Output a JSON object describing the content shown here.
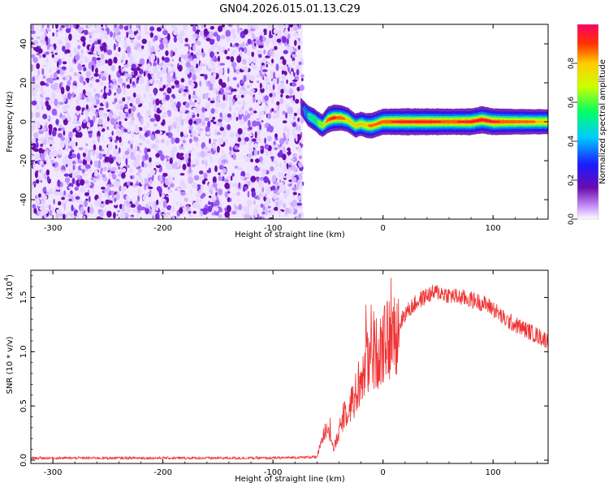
{
  "title": "GN04.2026.015.01.13.C29",
  "chart_data": [
    {
      "type": "heatmap",
      "title": "GN04.2026.015.01.13.C29",
      "xlabel": "Height of straight line (km)",
      "ylabel": "Frequency (Hz)",
      "xlim": [
        -320,
        150
      ],
      "ylim": [
        -50,
        50
      ],
      "xticks": [
        -300,
        -200,
        -100,
        0,
        100
      ],
      "yticks": [
        -40,
        -20,
        0,
        20,
        40
      ],
      "noise_region_x": [
        -320,
        -73
      ],
      "signal_track": {
        "x": [
          -75,
          -72,
          -68,
          -62,
          -58,
          -55,
          -50,
          -45,
          -38,
          -32,
          -25,
          -20,
          -15,
          -10,
          0,
          20,
          40,
          60,
          80,
          90,
          100,
          120,
          150
        ],
        "freq": [
          8,
          6,
          3,
          1,
          -1,
          -2,
          1,
          2,
          2,
          1,
          -2,
          -1,
          -2,
          -2,
          0,
          0,
          0,
          0,
          0,
          1,
          0,
          0,
          0
        ],
        "amplitude": [
          0.15,
          0.3,
          0.45,
          0.55,
          0.6,
          0.65,
          0.9,
          0.95,
          0.85,
          0.8,
          0.7,
          0.75,
          0.8,
          0.85,
          0.9,
          0.95,
          0.95,
          0.9,
          0.95,
          1.0,
          0.95,
          0.85,
          0.8
        ]
      },
      "colorbar": {
        "label": "Normalized spectral amplitude",
        "range": [
          0,
          1
        ],
        "ticks": [
          "0.0",
          "0.2",
          "0.4",
          "0.6",
          "0.8"
        ],
        "colors": [
          "#ffffff",
          "#cc99ff",
          "#6a0dad",
          "#1a1aff",
          "#00ccff",
          "#00ff66",
          "#ccff00",
          "#ffcc00",
          "#ff3300",
          "#ff0066"
        ]
      }
    },
    {
      "type": "line",
      "xlabel": "Height of straight line (km)",
      "ylabel": "SNR (10 * v/v)",
      "y_multiplier": "(x10",
      "y_multiplier_exp": "4",
      "y_multiplier_close": ")",
      "xlim": [
        -320,
        150
      ],
      "ylim": [
        0,
        1.75
      ],
      "xticks": [
        -300,
        -200,
        -100,
        0,
        100
      ],
      "yticks": [
        "0.0",
        "0.5",
        "1.0",
        "1.5"
      ],
      "color": "#ee3333",
      "series": [
        {
          "name": "SNR",
          "x": [
            -320,
            -200,
            -100,
            -60,
            -55,
            -50,
            -45,
            -40,
            -35,
            -30,
            -25,
            -20,
            -15,
            -10,
            -5,
            0,
            10,
            20,
            30,
            40,
            50,
            60,
            70,
            80,
            90,
            100,
            110,
            120,
            130,
            140,
            150
          ],
          "values": [
            0.02,
            0.02,
            0.02,
            0.03,
            0.2,
            0.35,
            0.1,
            0.25,
            0.45,
            0.5,
            0.6,
            0.75,
            0.9,
            0.95,
            1.0,
            1.05,
            1.15,
            1.35,
            1.45,
            1.52,
            1.55,
            1.52,
            1.5,
            1.48,
            1.45,
            1.4,
            1.3,
            1.25,
            1.2,
            1.15,
            1.1
          ]
        }
      ]
    }
  ]
}
